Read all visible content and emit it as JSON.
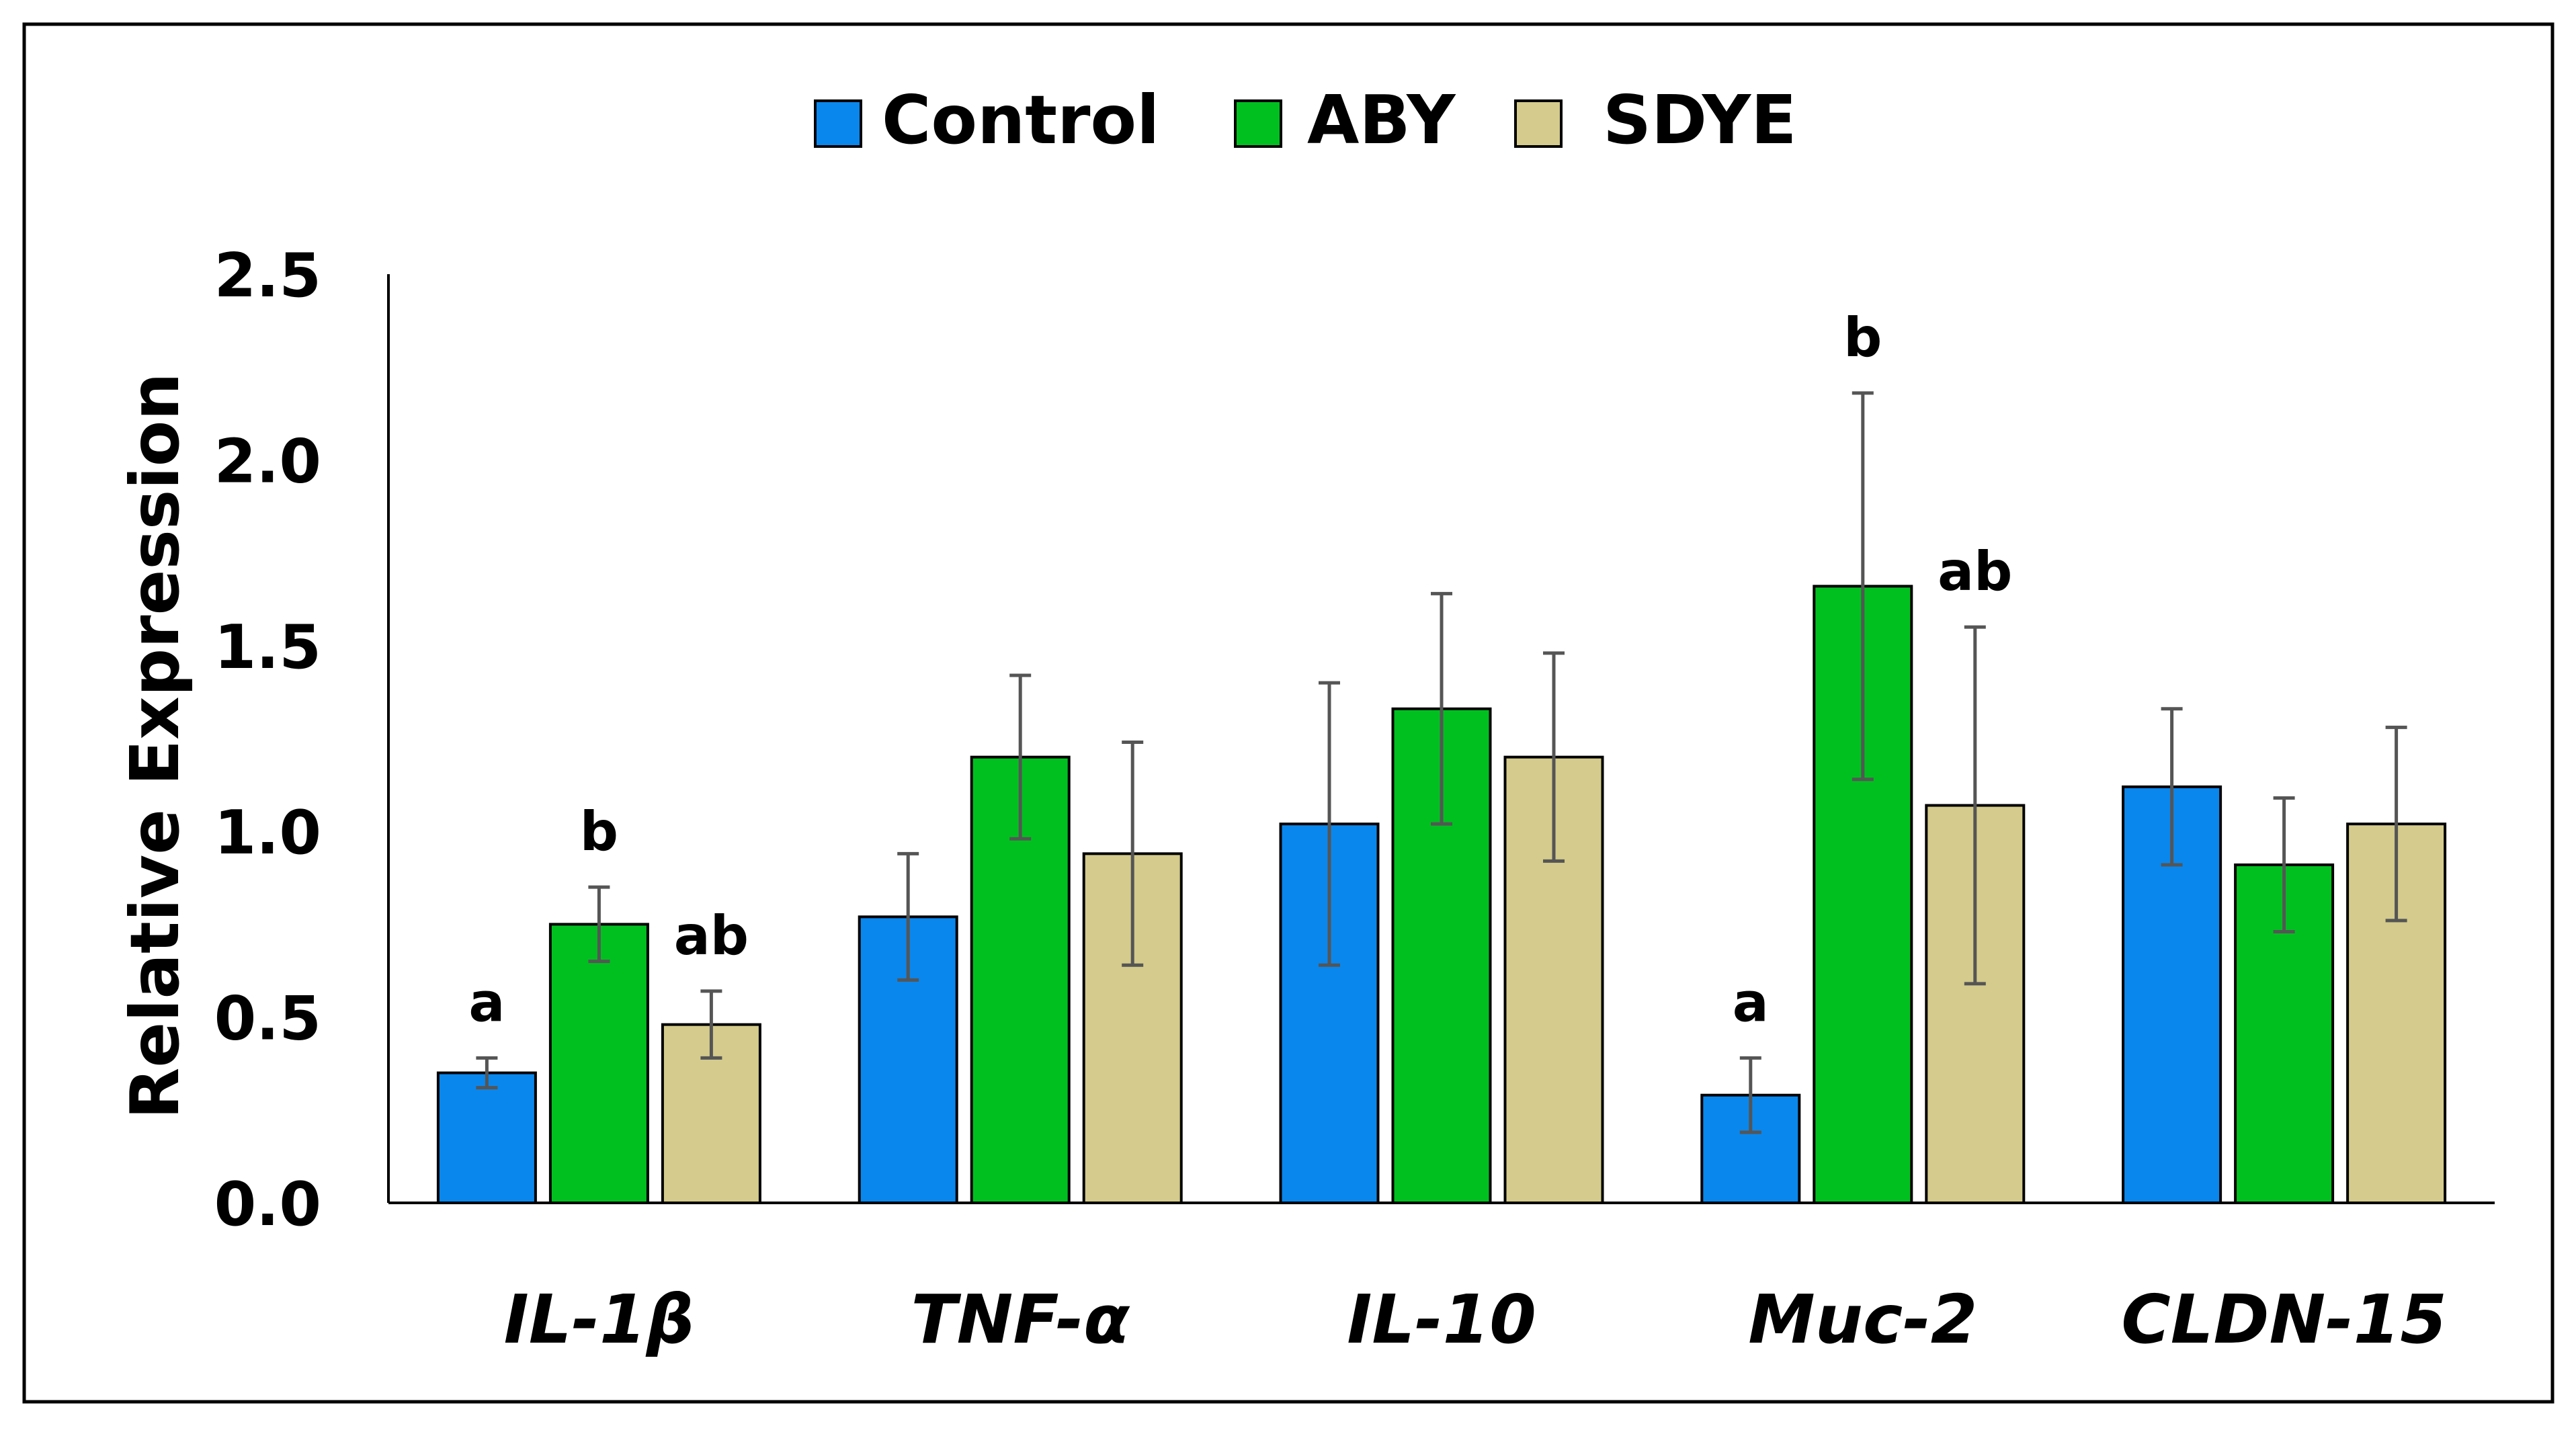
{
  "chart_data": {
    "type": "bar",
    "title": "",
    "xlabel": "",
    "ylabel": "Relative Expression",
    "ylim": [
      0,
      2.5
    ],
    "yticks": [
      "0.0",
      "0.5",
      "1.0",
      "1.5",
      "2.0",
      "2.5"
    ],
    "categories": [
      "IL-1β",
      "TNF-α",
      "IL-10",
      "Muc-2",
      "CLDN-15"
    ],
    "legend_position": "top",
    "series": [
      {
        "name": "Control",
        "color": "#0a87ed",
        "values": [
          0.35,
          0.77,
          1.02,
          0.29,
          1.12
        ],
        "errors": [
          0.04,
          0.17,
          0.38,
          0.1,
          0.21
        ],
        "annotations": [
          "a",
          "",
          "",
          "a",
          ""
        ]
      },
      {
        "name": "ABY",
        "color": "#00c020",
        "values": [
          0.75,
          1.2,
          1.33,
          1.66,
          0.91
        ],
        "errors": [
          0.1,
          0.22,
          0.31,
          0.52,
          0.18
        ],
        "annotations": [
          "b",
          "",
          "",
          "b",
          ""
        ]
      },
      {
        "name": "SDYE",
        "color": "#d4cb8c",
        "values": [
          0.48,
          0.94,
          1.2,
          1.07,
          1.02
        ],
        "errors": [
          0.09,
          0.3,
          0.28,
          0.48,
          0.26
        ],
        "annotations": [
          "ab",
          "",
          "",
          "ab",
          ""
        ]
      }
    ]
  }
}
